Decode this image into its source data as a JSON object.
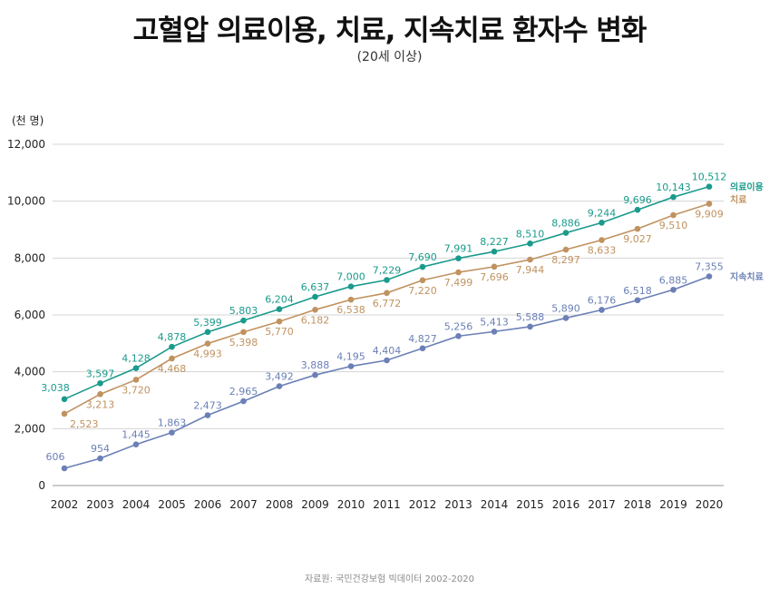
{
  "title": "고혈압 의료이용, 치료, 지속치료 환자수 변화",
  "subtitle": "(20세 이상)",
  "source": "자료원: 국민건강보험 빅데이터 2002-2020",
  "chart_data": {
    "type": "line",
    "unit_label": "(천 명)",
    "x": [
      2002,
      2003,
      2004,
      2005,
      2006,
      2007,
      2008,
      2009,
      2010,
      2011,
      2012,
      2013,
      2014,
      2015,
      2016,
      2017,
      2018,
      2019,
      2020
    ],
    "ylim": [
      0,
      12000
    ],
    "yticks": [
      0,
      2000,
      4000,
      6000,
      8000,
      10000,
      12000
    ],
    "ytick_labels": [
      "0",
      "2,000",
      "4,000",
      "6,000",
      "8,000",
      "10,000",
      "12,000"
    ],
    "grid": true,
    "series": [
      {
        "name": "의료이용",
        "color": "#1a9a8c",
        "label_position": "above",
        "values": [
          3038,
          3597,
          4128,
          4878,
          5399,
          5803,
          6204,
          6637,
          7000,
          7229,
          7690,
          7991,
          8227,
          8510,
          8886,
          9244,
          9696,
          10143,
          10512
        ],
        "value_labels": [
          "3,038",
          "3,597",
          "4,128",
          "4,878",
          "5,399",
          "5,803",
          "6,204",
          "6,637",
          "7,000",
          "7,229",
          "7,690",
          "7,991",
          "8,227",
          "8,510",
          "8,886",
          "9,244",
          "9,696",
          "10,143",
          "10,512"
        ]
      },
      {
        "name": "치료",
        "color": "#c0925f",
        "label_position": "below",
        "values": [
          2523,
          3213,
          3720,
          4468,
          4993,
          5398,
          5770,
          6182,
          6538,
          6772,
          7220,
          7499,
          7696,
          7944,
          8297,
          8633,
          9027,
          9510,
          9909
        ],
        "value_labels": [
          "2,523",
          "3,213",
          "3,720",
          "4,468",
          "4,993",
          "5,398",
          "5,770",
          "6,182",
          "6,538",
          "6,772",
          "7,220",
          "7,499",
          "7,696",
          "7,944",
          "8,297",
          "8,633",
          "9,027",
          "9,510",
          "9,909"
        ]
      },
      {
        "name": "지속치료",
        "color": "#6b80b6",
        "label_position": "above",
        "values": [
          606,
          954,
          1445,
          1863,
          2473,
          2965,
          3492,
          3888,
          4195,
          4404,
          4827,
          5256,
          5413,
          5588,
          5890,
          6176,
          6518,
          6885,
          7355
        ],
        "value_labels": [
          "606",
          "954",
          "1,445",
          "1,863",
          "2,473",
          "2,965",
          "3,492",
          "3,888",
          "4,195",
          "4,404",
          "4,827",
          "5,256",
          "5,413",
          "5,588",
          "5,890",
          "6,176",
          "6,518",
          "6,885",
          "7,355"
        ]
      }
    ]
  }
}
